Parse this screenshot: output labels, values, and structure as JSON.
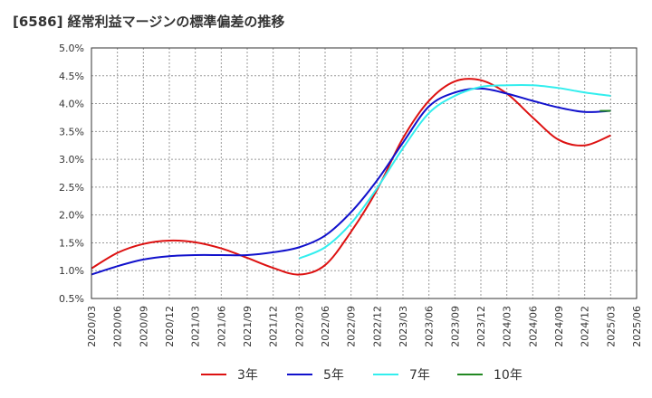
{
  "title": "[6586]  経常利益マージンの標準偏差の推移",
  "chart_data": {
    "type": "line",
    "title": "[6586]  経常利益マージンの標準偏差の推移",
    "xlabel": "",
    "ylabel": "",
    "ylim": [
      0.5,
      5.0
    ],
    "y_ticks": [
      "0.5%",
      "1.0%",
      "1.5%",
      "2.0%",
      "2.5%",
      "3.0%",
      "3.5%",
      "4.0%",
      "4.5%",
      "5.0%"
    ],
    "y_tick_values": [
      0.5,
      1.0,
      1.5,
      2.0,
      2.5,
      3.0,
      3.5,
      4.0,
      4.5,
      5.0
    ],
    "categories": [
      "2020/03",
      "2020/06",
      "2020/09",
      "2020/12",
      "2021/03",
      "2021/06",
      "2021/09",
      "2021/12",
      "2022/03",
      "2022/06",
      "2022/09",
      "2022/12",
      "2023/03",
      "2023/06",
      "2023/09",
      "2023/12",
      "2024/03",
      "2024/06",
      "2024/09",
      "2024/12",
      "2025/03",
      "2025/06"
    ],
    "grid": true,
    "legend_position": "bottom",
    "series": [
      {
        "name": "3年",
        "color": "#dd1111",
        "values": [
          1.04,
          1.32,
          1.48,
          1.54,
          1.51,
          1.4,
          1.23,
          1.05,
          0.93,
          1.1,
          1.7,
          2.45,
          3.38,
          4.05,
          4.4,
          4.42,
          4.18,
          3.75,
          3.35,
          3.25,
          3.43,
          null
        ]
      },
      {
        "name": "5年",
        "color": "#1111cc",
        "values": [
          0.93,
          1.08,
          1.2,
          1.26,
          1.28,
          1.28,
          1.28,
          1.33,
          1.42,
          1.63,
          2.05,
          2.62,
          3.3,
          3.95,
          4.2,
          4.27,
          4.18,
          4.05,
          3.93,
          3.85,
          3.87,
          null
        ]
      },
      {
        "name": "7年",
        "color": "#33eeee",
        "values": [
          null,
          null,
          null,
          null,
          null,
          null,
          null,
          null,
          1.22,
          1.42,
          1.85,
          2.48,
          3.2,
          3.83,
          4.14,
          4.3,
          4.33,
          4.33,
          4.28,
          4.2,
          4.14,
          null
        ]
      },
      {
        "name": "10年",
        "color": "#228822",
        "values": [
          null,
          null,
          null,
          null,
          null,
          null,
          null,
          null,
          null,
          null,
          null,
          null,
          null,
          null,
          null,
          null,
          null,
          null,
          null,
          null,
          3.87,
          null
        ]
      }
    ]
  }
}
